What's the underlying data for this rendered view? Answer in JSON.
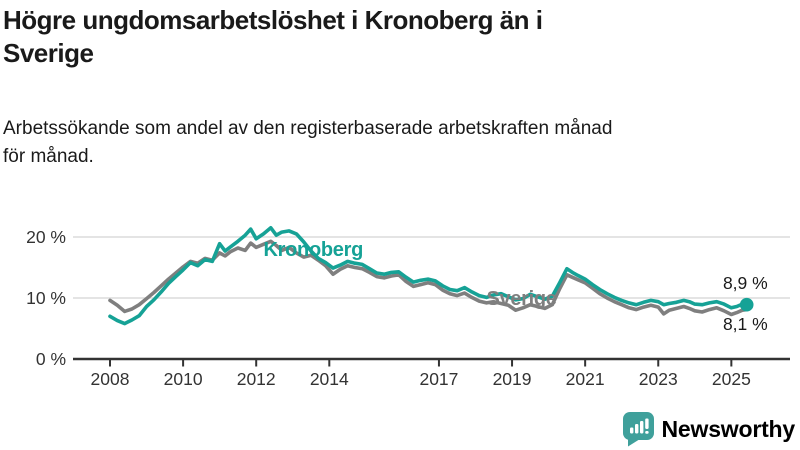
{
  "header": {
    "title": "Högre ungdomsarbetslöshet i Kronoberg än i\nSverige",
    "subtitle": "Arbetssökande som andel av den registerbaserade arbetskraften månad\nför månad."
  },
  "footer": {
    "brand": "Newsworthy"
  },
  "colors": {
    "kronoberg": "#16A296",
    "sverige": "#7F7F7F",
    "grid": "#DCDCDC",
    "axis": "#333333",
    "tick_text": "#333333",
    "annotation_text": "#1a1a1a",
    "title_text": "#1a1a1a",
    "brand_teal": "#3FA09B"
  },
  "chart_data": {
    "type": "line",
    "unit": "%",
    "x_range": [
      2008.0,
      2025.42
    ],
    "ylim": [
      0,
      22
    ],
    "grid": "horizontal-only",
    "y_ticks": [
      {
        "value": 0,
        "label": "0 %"
      },
      {
        "value": 10,
        "label": "10 %"
      },
      {
        "value": 20,
        "label": "20 %"
      }
    ],
    "x_ticks": [
      {
        "value": 2008,
        "label": "2008"
      },
      {
        "value": 2010,
        "label": "2010"
      },
      {
        "value": 2012,
        "label": "2012"
      },
      {
        "value": 2014,
        "label": "2014"
      },
      {
        "value": 2017,
        "label": "2017"
      },
      {
        "value": 2019,
        "label": "2019"
      },
      {
        "value": 2021,
        "label": "2021"
      },
      {
        "value": 2023,
        "label": "2023"
      },
      {
        "value": 2025,
        "label": "2025"
      }
    ],
    "series": [
      {
        "name": "Sverige",
        "color_key": "sverige",
        "end_dot": false,
        "end_value_label": "8,1 %",
        "points": [
          [
            2008.0,
            9.6
          ],
          [
            2008.2,
            8.8
          ],
          [
            2008.4,
            7.8
          ],
          [
            2008.6,
            8.2
          ],
          [
            2008.8,
            8.9
          ],
          [
            2009.0,
            9.9
          ],
          [
            2009.2,
            10.9
          ],
          [
            2009.4,
            12.0
          ],
          [
            2009.6,
            13.1
          ],
          [
            2009.8,
            14.1
          ],
          [
            2010.0,
            15.1
          ],
          [
            2010.2,
            16.0
          ],
          [
            2010.4,
            15.7
          ],
          [
            2010.6,
            16.5
          ],
          [
            2010.8,
            16.2
          ],
          [
            2011.0,
            17.4
          ],
          [
            2011.15,
            16.9
          ],
          [
            2011.3,
            17.6
          ],
          [
            2011.5,
            18.2
          ],
          [
            2011.7,
            17.8
          ],
          [
            2011.85,
            19.0
          ],
          [
            2012.0,
            18.3
          ],
          [
            2012.2,
            18.8
          ],
          [
            2012.4,
            19.3
          ],
          [
            2012.55,
            18.6
          ],
          [
            2012.7,
            17.8
          ],
          [
            2012.9,
            18.3
          ],
          [
            2013.1,
            17.4
          ],
          [
            2013.3,
            16.7
          ],
          [
            2013.5,
            17.0
          ],
          [
            2013.7,
            16.2
          ],
          [
            2013.9,
            15.3
          ],
          [
            2014.1,
            13.9
          ],
          [
            2014.3,
            14.7
          ],
          [
            2014.5,
            15.3
          ],
          [
            2014.7,
            15.0
          ],
          [
            2014.9,
            14.8
          ],
          [
            2015.1,
            14.2
          ],
          [
            2015.3,
            13.5
          ],
          [
            2015.5,
            13.3
          ],
          [
            2015.7,
            13.6
          ],
          [
            2015.9,
            13.8
          ],
          [
            2016.1,
            12.7
          ],
          [
            2016.3,
            11.9
          ],
          [
            2016.5,
            12.2
          ],
          [
            2016.7,
            12.5
          ],
          [
            2016.9,
            12.2
          ],
          [
            2017.1,
            11.3
          ],
          [
            2017.3,
            10.7
          ],
          [
            2017.5,
            10.4
          ],
          [
            2017.7,
            10.8
          ],
          [
            2017.9,
            10.1
          ],
          [
            2018.1,
            9.5
          ],
          [
            2018.3,
            9.2
          ],
          [
            2018.5,
            9.4
          ],
          [
            2018.7,
            9.1
          ],
          [
            2018.9,
            8.8
          ],
          [
            2019.1,
            8.0
          ],
          [
            2019.3,
            8.4
          ],
          [
            2019.5,
            8.9
          ],
          [
            2019.7,
            8.6
          ],
          [
            2019.9,
            8.3
          ],
          [
            2020.1,
            8.9
          ],
          [
            2020.3,
            11.5
          ],
          [
            2020.5,
            13.8
          ],
          [
            2020.65,
            13.4
          ],
          [
            2020.8,
            13.0
          ],
          [
            2021.0,
            12.5
          ],
          [
            2021.2,
            11.6
          ],
          [
            2021.4,
            10.7
          ],
          [
            2021.6,
            10.0
          ],
          [
            2021.8,
            9.4
          ],
          [
            2022.0,
            8.9
          ],
          [
            2022.2,
            8.4
          ],
          [
            2022.4,
            8.1
          ],
          [
            2022.6,
            8.5
          ],
          [
            2022.8,
            8.8
          ],
          [
            2023.0,
            8.5
          ],
          [
            2023.15,
            7.4
          ],
          [
            2023.3,
            8.0
          ],
          [
            2023.5,
            8.3
          ],
          [
            2023.7,
            8.6
          ],
          [
            2023.85,
            8.3
          ],
          [
            2024.0,
            7.9
          ],
          [
            2024.2,
            7.7
          ],
          [
            2024.4,
            8.1
          ],
          [
            2024.6,
            8.4
          ],
          [
            2024.8,
            7.9
          ],
          [
            2025.0,
            7.3
          ],
          [
            2025.15,
            7.6
          ],
          [
            2025.3,
            8.0
          ],
          [
            2025.42,
            8.1
          ]
        ]
      },
      {
        "name": "Kronoberg",
        "color_key": "kronoberg",
        "end_dot": true,
        "end_value_label": "8,9 %",
        "points": [
          [
            2008.0,
            7.0
          ],
          [
            2008.2,
            6.3
          ],
          [
            2008.4,
            5.8
          ],
          [
            2008.6,
            6.4
          ],
          [
            2008.8,
            7.1
          ],
          [
            2009.0,
            8.6
          ],
          [
            2009.2,
            9.7
          ],
          [
            2009.4,
            11.0
          ],
          [
            2009.6,
            12.4
          ],
          [
            2009.8,
            13.5
          ],
          [
            2010.0,
            14.6
          ],
          [
            2010.2,
            15.8
          ],
          [
            2010.4,
            15.3
          ],
          [
            2010.6,
            16.3
          ],
          [
            2010.8,
            16.0
          ],
          [
            2011.0,
            18.9
          ],
          [
            2011.15,
            17.7
          ],
          [
            2011.3,
            18.4
          ],
          [
            2011.5,
            19.3
          ],
          [
            2011.7,
            20.3
          ],
          [
            2011.85,
            21.3
          ],
          [
            2012.0,
            19.7
          ],
          [
            2012.2,
            20.5
          ],
          [
            2012.4,
            21.5
          ],
          [
            2012.55,
            20.3
          ],
          [
            2012.7,
            20.8
          ],
          [
            2012.9,
            21.0
          ],
          [
            2013.1,
            20.5
          ],
          [
            2013.3,
            19.2
          ],
          [
            2013.5,
            17.7
          ],
          [
            2013.7,
            16.5
          ],
          [
            2013.9,
            15.8
          ],
          [
            2014.1,
            14.9
          ],
          [
            2014.3,
            15.4
          ],
          [
            2014.5,
            16.0
          ],
          [
            2014.7,
            15.7
          ],
          [
            2014.9,
            15.5
          ],
          [
            2015.1,
            14.8
          ],
          [
            2015.3,
            14.1
          ],
          [
            2015.5,
            13.9
          ],
          [
            2015.7,
            14.2
          ],
          [
            2015.9,
            14.3
          ],
          [
            2016.1,
            13.4
          ],
          [
            2016.3,
            12.6
          ],
          [
            2016.5,
            12.9
          ],
          [
            2016.7,
            13.1
          ],
          [
            2016.9,
            12.8
          ],
          [
            2017.1,
            12.0
          ],
          [
            2017.3,
            11.4
          ],
          [
            2017.5,
            11.2
          ],
          [
            2017.7,
            11.7
          ],
          [
            2017.9,
            11.0
          ],
          [
            2018.1,
            10.4
          ],
          [
            2018.3,
            10.1
          ],
          [
            2018.5,
            10.5
          ],
          [
            2018.7,
            10.7
          ],
          [
            2018.9,
            10.2
          ],
          [
            2019.1,
            9.7
          ],
          [
            2019.3,
            9.9
          ],
          [
            2019.5,
            10.6
          ],
          [
            2019.7,
            10.2
          ],
          [
            2019.9,
            9.8
          ],
          [
            2020.1,
            10.3
          ],
          [
            2020.3,
            12.5
          ],
          [
            2020.5,
            14.8
          ],
          [
            2020.65,
            14.2
          ],
          [
            2020.8,
            13.7
          ],
          [
            2021.0,
            13.1
          ],
          [
            2021.2,
            12.2
          ],
          [
            2021.4,
            11.4
          ],
          [
            2021.6,
            10.7
          ],
          [
            2021.8,
            10.1
          ],
          [
            2022.0,
            9.6
          ],
          [
            2022.2,
            9.2
          ],
          [
            2022.4,
            8.9
          ],
          [
            2022.6,
            9.3
          ],
          [
            2022.8,
            9.6
          ],
          [
            2023.0,
            9.4
          ],
          [
            2023.15,
            8.9
          ],
          [
            2023.3,
            9.1
          ],
          [
            2023.5,
            9.3
          ],
          [
            2023.7,
            9.6
          ],
          [
            2023.85,
            9.4
          ],
          [
            2024.0,
            9.0
          ],
          [
            2024.2,
            8.9
          ],
          [
            2024.4,
            9.2
          ],
          [
            2024.6,
            9.4
          ],
          [
            2024.8,
            9.0
          ],
          [
            2025.0,
            8.4
          ],
          [
            2025.15,
            8.6
          ],
          [
            2025.3,
            9.0
          ],
          [
            2025.42,
            8.9
          ]
        ]
      }
    ],
    "series_labels": [
      {
        "text": "Kronoberg",
        "year": 2012.2,
        "pct": 16.9,
        "color_key": "kronoberg"
      },
      {
        "text": "Sverige",
        "year": 2018.3,
        "pct": 8.85,
        "color_key": "sverige"
      }
    ],
    "end_labels": [
      {
        "text": "8,9 %",
        "year": 2024.77,
        "pct": 11.5
      },
      {
        "text": "8,1 %",
        "year": 2024.77,
        "pct": 4.75
      }
    ]
  }
}
